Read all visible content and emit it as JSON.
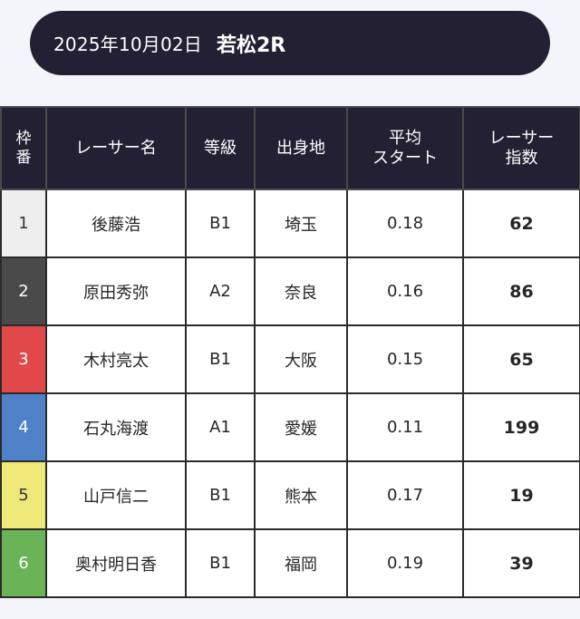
{
  "header": {
    "date": "2025年10月02日",
    "race": "若松2R"
  },
  "table": {
    "columns": {
      "waku": [
        "枠",
        "番"
      ],
      "name": "レーサー名",
      "grade": "等級",
      "hometown": "出身地",
      "avg_start": [
        "平均",
        "スタート"
      ],
      "index": [
        "レーサー",
        "指数"
      ]
    },
    "rows": [
      {
        "waku": "1",
        "name": "後藤浩",
        "grade": "B1",
        "hometown": "埼玉",
        "avg_start": "0.18",
        "index": "62",
        "waku_bg": "#eeeeee",
        "waku_fg": "#333333"
      },
      {
        "waku": "2",
        "name": "原田秀弥",
        "grade": "A2",
        "hometown": "奈良",
        "avg_start": "0.16",
        "index": "86",
        "waku_bg": "#4a4a4a",
        "waku_fg": "#ffffff"
      },
      {
        "waku": "3",
        "name": "木村亮太",
        "grade": "B1",
        "hometown": "大阪",
        "avg_start": "0.15",
        "index": "65",
        "waku_bg": "#e0484a",
        "waku_fg": "#ffffff"
      },
      {
        "waku": "4",
        "name": "石丸海渡",
        "grade": "A1",
        "hometown": "愛媛",
        "avg_start": "0.11",
        "index": "199",
        "waku_bg": "#4f81c9",
        "waku_fg": "#ffffff"
      },
      {
        "waku": "5",
        "name": "山戸信二",
        "grade": "B1",
        "hometown": "熊本",
        "avg_start": "0.17",
        "index": "19",
        "waku_bg": "#ede878",
        "waku_fg": "#333333"
      },
      {
        "waku": "6",
        "name": "奥村明日香",
        "grade": "B1",
        "hometown": "福岡",
        "avg_start": "0.19",
        "index": "39",
        "waku_bg": "#6ab356",
        "waku_fg": "#ffffff"
      }
    ]
  }
}
